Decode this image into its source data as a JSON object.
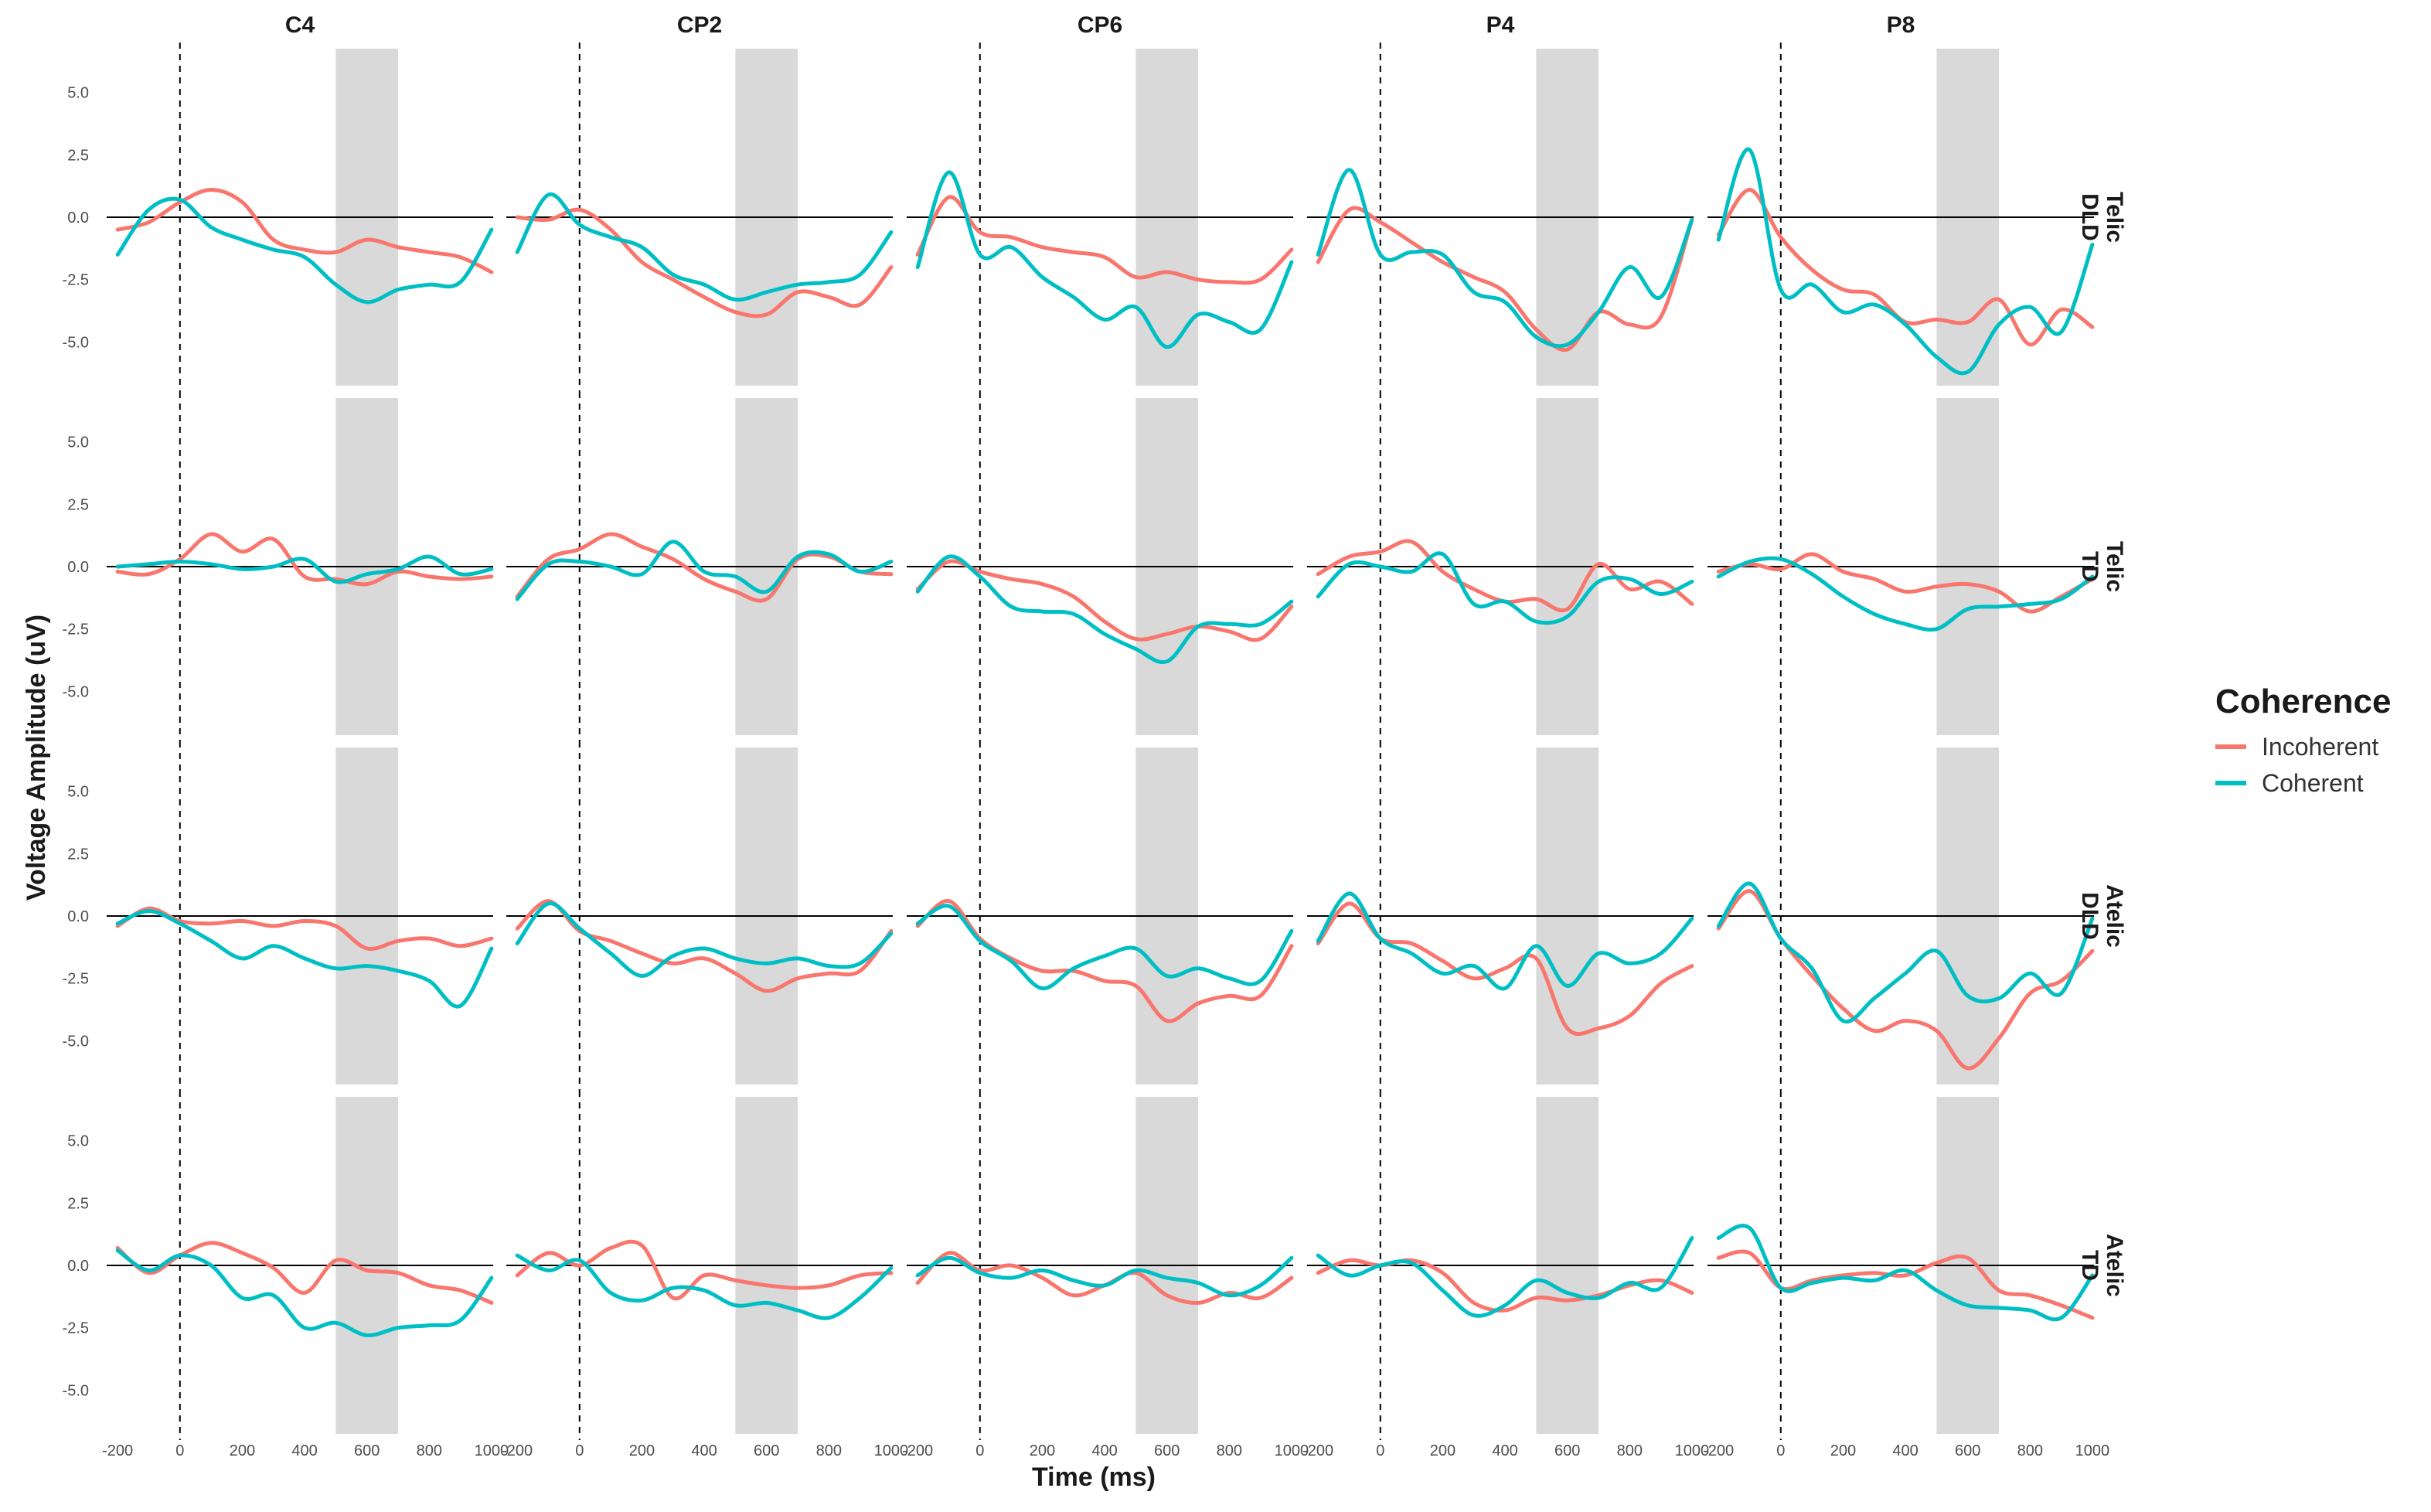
{
  "chart_data": {
    "type": "line",
    "facet_columns": [
      "C4",
      "CP2",
      "CP6",
      "P4",
      "P8"
    ],
    "facet_rows": [
      {
        "label_top": "Telic",
        "label_bottom": "DLD"
      },
      {
        "label_top": "Telic",
        "label_bottom": "TD"
      },
      {
        "label_top": "Atelic",
        "label_bottom": "DLD"
      },
      {
        "label_top": "Atelic",
        "label_bottom": "TD"
      }
    ],
    "xlabel": "Time (ms)",
    "ylabel": "Voltage Amplitude (uV)",
    "xlim": [
      -250,
      1020
    ],
    "ylim": [
      -7,
      7
    ],
    "x_ticks": [
      -200,
      0,
      200,
      400,
      600,
      800,
      1000
    ],
    "x_tick_labels": [
      "-200",
      "0",
      "200",
      "400",
      "600",
      "800",
      "1000"
    ],
    "y_ticks": [
      5,
      2.5,
      0,
      -2.5,
      -5
    ],
    "y_tick_labels": [
      "5.0",
      "2.5",
      "0.0",
      "-2.5",
      "-5.0"
    ],
    "shaded_window": [
      500,
      700
    ],
    "onset_line_x": 0,
    "x": [
      -200,
      -100,
      0,
      100,
      200,
      300,
      400,
      500,
      600,
      700,
      800,
      900,
      1000
    ],
    "legend": {
      "title": "Coherence",
      "entries": [
        {
          "name": "Incoherent",
          "color": "#F8766D"
        },
        {
          "name": "Coherent",
          "color": "#00BFC4"
        }
      ]
    },
    "panels": [
      [
        {
          "series": [
            {
              "name": "Incoherent",
              "values": [
                -0.5,
                -0.2,
                0.6,
                1.1,
                0.6,
                -0.9,
                -1.3,
                -1.4,
                -0.9,
                -1.2,
                -1.4,
                -1.6,
                -2.2
              ]
            },
            {
              "name": "Coherent",
              "values": [
                -1.5,
                0.3,
                0.7,
                -0.4,
                -0.9,
                -1.3,
                -1.6,
                -2.7,
                -3.4,
                -2.9,
                -2.7,
                -2.6,
                -0.5
              ]
            }
          ]
        },
        {
          "series": [
            {
              "name": "Incoherent",
              "values": [
                0.0,
                -0.1,
                0.3,
                -0.5,
                -1.8,
                -2.5,
                -3.2,
                -3.8,
                -3.9,
                -3.0,
                -3.2,
                -3.5,
                -2.0
              ]
            },
            {
              "name": "Coherent",
              "values": [
                -1.4,
                0.9,
                -0.3,
                -0.8,
                -1.2,
                -2.3,
                -2.7,
                -3.3,
                -3.0,
                -2.7,
                -2.6,
                -2.3,
                -0.6
              ]
            }
          ]
        },
        {
          "series": [
            {
              "name": "Incoherent",
              "values": [
                -1.5,
                0.8,
                -0.6,
                -0.8,
                -1.2,
                -1.4,
                -1.6,
                -2.4,
                -2.2,
                -2.5,
                -2.6,
                -2.5,
                -1.3
              ]
            },
            {
              "name": "Coherent",
              "values": [
                -2.0,
                1.8,
                -1.5,
                -1.2,
                -2.4,
                -3.2,
                -4.1,
                -3.6,
                -5.2,
                -3.9,
                -4.2,
                -4.5,
                -1.8
              ]
            }
          ]
        },
        {
          "series": [
            {
              "name": "Incoherent",
              "values": [
                -1.8,
                0.3,
                -0.2,
                -1.0,
                -1.8,
                -2.4,
                -3.0,
                -4.5,
                -5.3,
                -3.8,
                -4.3,
                -4.0,
                -0.1
              ]
            },
            {
              "name": "Coherent",
              "values": [
                -1.5,
                1.9,
                -1.5,
                -1.4,
                -1.5,
                -3.0,
                -3.4,
                -4.8,
                -5.1,
                -3.8,
                -2.0,
                -3.2,
                -0.1
              ]
            }
          ]
        },
        {
          "series": [
            {
              "name": "Incoherent",
              "values": [
                -0.7,
                1.1,
                -0.8,
                -2.1,
                -2.9,
                -3.1,
                -4.2,
                -4.1,
                -4.2,
                -3.3,
                -5.1,
                -3.7,
                -4.4
              ]
            },
            {
              "name": "Coherent",
              "values": [
                -0.9,
                2.7,
                -2.9,
                -2.7,
                -3.8,
                -3.5,
                -4.3,
                -5.6,
                -6.2,
                -4.3,
                -3.6,
                -4.6,
                -1.1
              ]
            }
          ]
        }
      ],
      [
        {
          "series": [
            {
              "name": "Incoherent",
              "values": [
                -0.2,
                -0.3,
                0.3,
                1.3,
                0.6,
                1.1,
                -0.4,
                -0.5,
                -0.7,
                -0.2,
                -0.4,
                -0.5,
                -0.4
              ]
            },
            {
              "name": "Coherent",
              "values": [
                0.0,
                0.1,
                0.2,
                0.1,
                -0.1,
                0.0,
                0.3,
                -0.6,
                -0.3,
                -0.1,
                0.4,
                -0.3,
                -0.1
              ]
            }
          ]
        },
        {
          "series": [
            {
              "name": "Incoherent",
              "values": [
                -1.2,
                0.3,
                0.7,
                1.3,
                0.8,
                0.3,
                -0.5,
                -1.0,
                -1.3,
                0.3,
                0.4,
                -0.2,
                -0.3
              ]
            },
            {
              "name": "Coherent",
              "values": [
                -1.3,
                0.1,
                0.2,
                0.0,
                -0.3,
                1.0,
                -0.2,
                -0.4,
                -1.0,
                0.4,
                0.5,
                -0.2,
                0.2
              ]
            }
          ]
        },
        {
          "series": [
            {
              "name": "Incoherent",
              "values": [
                -0.9,
                0.2,
                -0.2,
                -0.5,
                -0.7,
                -1.2,
                -2.2,
                -2.9,
                -2.7,
                -2.4,
                -2.6,
                -2.9,
                -1.6
              ]
            },
            {
              "name": "Coherent",
              "values": [
                -1.0,
                0.4,
                -0.4,
                -1.6,
                -1.8,
                -1.9,
                -2.7,
                -3.3,
                -3.8,
                -2.4,
                -2.3,
                -2.3,
                -1.4
              ]
            }
          ]
        },
        {
          "series": [
            {
              "name": "Incoherent",
              "values": [
                -0.3,
                0.4,
                0.6,
                1.0,
                -0.2,
                -0.9,
                -1.4,
                -1.3,
                -1.7,
                0.1,
                -0.9,
                -0.6,
                -1.5
              ]
            },
            {
              "name": "Coherent",
              "values": [
                -1.2,
                0.1,
                0.0,
                -0.2,
                0.5,
                -1.5,
                -1.4,
                -2.2,
                -2.0,
                -0.6,
                -0.5,
                -1.1,
                -0.6
              ]
            }
          ]
        },
        {
          "series": [
            {
              "name": "Incoherent",
              "values": [
                -0.2,
                0.1,
                -0.1,
                0.5,
                -0.2,
                -0.5,
                -1.0,
                -0.8,
                -0.7,
                -1.0,
                -1.8,
                -1.2,
                -0.5
              ]
            },
            {
              "name": "Coherent",
              "values": [
                -0.4,
                0.2,
                0.3,
                -0.3,
                -1.2,
                -1.9,
                -2.3,
                -2.5,
                -1.7,
                -1.6,
                -1.5,
                -1.3,
                -0.4
              ]
            }
          ]
        }
      ],
      [
        {
          "series": [
            {
              "name": "Incoherent",
              "values": [
                -0.4,
                0.3,
                -0.2,
                -0.3,
                -0.2,
                -0.4,
                -0.2,
                -0.4,
                -1.3,
                -1.0,
                -0.9,
                -1.2,
                -0.9
              ]
            },
            {
              "name": "Coherent",
              "values": [
                -0.3,
                0.2,
                -0.3,
                -1.0,
                -1.7,
                -1.2,
                -1.7,
                -2.1,
                -2.0,
                -2.2,
                -2.6,
                -3.6,
                -1.3
              ]
            }
          ]
        },
        {
          "series": [
            {
              "name": "Incoherent",
              "values": [
                -0.5,
                0.6,
                -0.6,
                -1.0,
                -1.5,
                -1.9,
                -1.7,
                -2.3,
                -3.0,
                -2.5,
                -2.3,
                -2.2,
                -0.6
              ]
            },
            {
              "name": "Coherent",
              "values": [
                -1.1,
                0.5,
                -0.5,
                -1.5,
                -2.4,
                -1.6,
                -1.3,
                -1.7,
                -1.9,
                -1.7,
                -2.0,
                -1.9,
                -0.7
              ]
            }
          ]
        },
        {
          "series": [
            {
              "name": "Incoherent",
              "values": [
                -0.4,
                0.6,
                -0.9,
                -1.7,
                -2.2,
                -2.2,
                -2.6,
                -2.8,
                -4.2,
                -3.5,
                -3.2,
                -3.2,
                -1.2
              ]
            },
            {
              "name": "Coherent",
              "values": [
                -0.3,
                0.4,
                -1.0,
                -1.8,
                -2.9,
                -2.1,
                -1.6,
                -1.3,
                -2.4,
                -2.1,
                -2.5,
                -2.6,
                -0.6
              ]
            }
          ]
        },
        {
          "series": [
            {
              "name": "Incoherent",
              "values": [
                -1.1,
                0.5,
                -0.9,
                -1.1,
                -1.8,
                -2.5,
                -2.1,
                -1.7,
                -4.5,
                -4.5,
                -4.0,
                -2.7,
                -2.0
              ]
            },
            {
              "name": "Coherent",
              "values": [
                -1.0,
                0.9,
                -0.9,
                -1.5,
                -2.3,
                -2.0,
                -2.9,
                -1.2,
                -2.8,
                -1.5,
                -1.9,
                -1.5,
                -0.1
              ]
            }
          ]
        },
        {
          "series": [
            {
              "name": "Incoherent",
              "values": [
                -0.5,
                1.0,
                -0.9,
                -2.4,
                -3.7,
                -4.6,
                -4.2,
                -4.6,
                -6.1,
                -4.9,
                -3.1,
                -2.6,
                -1.4
              ]
            },
            {
              "name": "Coherent",
              "values": [
                -0.4,
                1.3,
                -0.9,
                -2.1,
                -4.2,
                -3.3,
                -2.3,
                -1.4,
                -3.2,
                -3.3,
                -2.3,
                -3.1,
                -0.1
              ]
            }
          ]
        }
      ],
      [
        {
          "series": [
            {
              "name": "Incoherent",
              "values": [
                0.7,
                -0.3,
                0.4,
                0.9,
                0.5,
                -0.1,
                -1.1,
                0.2,
                -0.2,
                -0.3,
                -0.8,
                -1.0,
                -1.5
              ]
            },
            {
              "name": "Coherent",
              "values": [
                0.6,
                -0.2,
                0.4,
                0.0,
                -1.3,
                -1.2,
                -2.5,
                -2.3,
                -2.8,
                -2.5,
                -2.4,
                -2.2,
                -0.5
              ]
            }
          ]
        },
        {
          "series": [
            {
              "name": "Incoherent",
              "values": [
                -0.4,
                0.5,
                0.0,
                0.7,
                0.8,
                -1.3,
                -0.4,
                -0.6,
                -0.8,
                -0.9,
                -0.8,
                -0.4,
                -0.3
              ]
            },
            {
              "name": "Coherent",
              "values": [
                0.4,
                -0.2,
                0.2,
                -1.1,
                -1.4,
                -0.9,
                -1.0,
                -1.6,
                -1.5,
                -1.8,
                -2.1,
                -1.3,
                -0.1
              ]
            }
          ]
        },
        {
          "series": [
            {
              "name": "Incoherent",
              "values": [
                -0.7,
                0.5,
                -0.2,
                0.0,
                -0.5,
                -1.2,
                -0.8,
                -0.3,
                -1.2,
                -1.5,
                -1.1,
                -1.3,
                -0.5
              ]
            },
            {
              "name": "Coherent",
              "values": [
                -0.4,
                0.3,
                -0.3,
                -0.5,
                -0.2,
                -0.6,
                -0.8,
                -0.2,
                -0.5,
                -0.7,
                -1.2,
                -0.8,
                0.3
              ]
            }
          ]
        },
        {
          "series": [
            {
              "name": "Incoherent",
              "values": [
                -0.3,
                0.2,
                0.0,
                0.2,
                -0.3,
                -1.5,
                -1.8,
                -1.3,
                -1.4,
                -1.2,
                -0.8,
                -0.6,
                -1.1
              ]
            },
            {
              "name": "Coherent",
              "values": [
                0.4,
                -0.4,
                0.0,
                0.1,
                -1.0,
                -2.0,
                -1.6,
                -0.6,
                -1.1,
                -1.3,
                -0.7,
                -0.9,
                1.1
              ]
            }
          ]
        },
        {
          "series": [
            {
              "name": "Incoherent",
              "values": [
                0.3,
                0.5,
                -0.9,
                -0.6,
                -0.4,
                -0.3,
                -0.4,
                0.1,
                0.3,
                -1.0,
                -1.2,
                -1.6,
                -2.1
              ]
            },
            {
              "name": "Coherent",
              "values": [
                1.1,
                1.5,
                -0.9,
                -0.7,
                -0.5,
                -0.6,
                -0.2,
                -1.0,
                -1.6,
                -1.7,
                -1.8,
                -2.1,
                -0.4
              ]
            }
          ]
        }
      ]
    ]
  }
}
